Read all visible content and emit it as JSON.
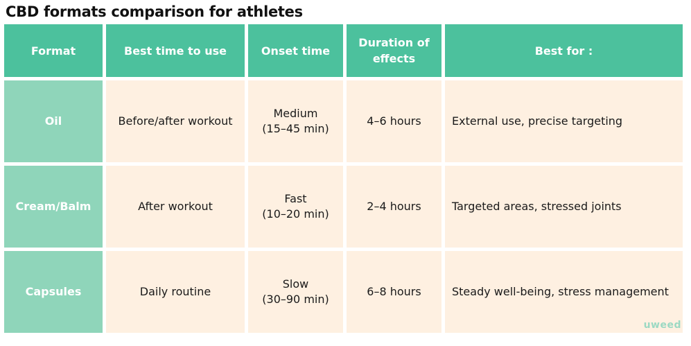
{
  "title": "CBD formats comparison for athletes",
  "headers": {
    "format": "Format",
    "best_time": "Best time to use",
    "onset": "Onset time",
    "duration_line1": "Duration of",
    "duration_line2": "effects",
    "best_for": "Best for :"
  },
  "rows": [
    {
      "format": "Oil",
      "best_time": "Before/after workout",
      "onset_line1": "Medium",
      "onset_line2": "(15–45 min)",
      "duration": "4–6 hours",
      "best_for": "External use, precise targeting"
    },
    {
      "format": "Cream/Balm",
      "best_time": "After workout",
      "onset_line1": "Fast",
      "onset_line2": "(10–20 min)",
      "duration": "2–4 hours",
      "best_for": "Targeted areas, stressed joints"
    },
    {
      "format": "Capsules",
      "best_time": "Daily routine",
      "onset_line1": "Slow",
      "onset_line2": "(30–90 min)",
      "duration": "6–8 hours",
      "best_for": "Steady well-being, stress management"
    }
  ],
  "logo": "uweed",
  "colors": {
    "header_bg": "#4cc19d",
    "format_col_bg": "#8fd5ba",
    "cell_bg": "#fef0e1"
  }
}
